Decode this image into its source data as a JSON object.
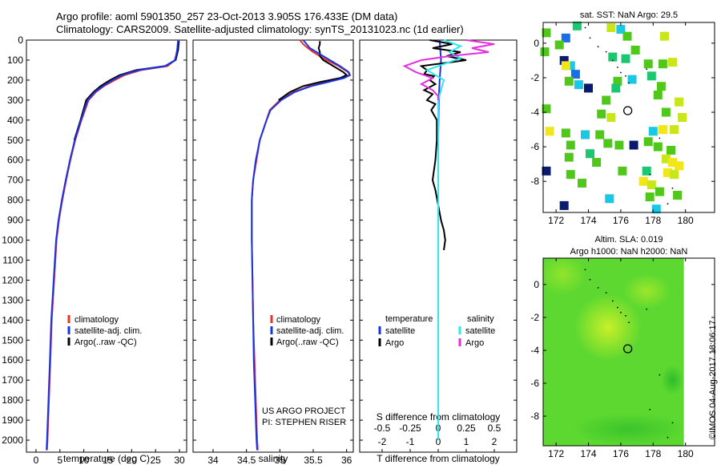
{
  "header": {
    "line1": "Argo profile: aoml 5901350_257 23-Oct-2013 3.905S 176.433E (DM data)",
    "line2": "Climatology: CARS2009. Satellite-adjusted climatology: synTS_20131023.nc (1d earlier)"
  },
  "colors": {
    "climatology": "#e8312a",
    "satellite": "#1a32e6",
    "argo": "#000000",
    "sat_salinity": "#2ee6f0",
    "argo_salinity": "#e62ee0"
  },
  "pressure_axis": {
    "ticks": [
      0,
      100,
      200,
      300,
      400,
      500,
      600,
      700,
      800,
      900,
      1000,
      1100,
      1200,
      1300,
      1400,
      1500,
      1600,
      1700,
      1800,
      1900,
      2000
    ],
    "range": [
      0,
      2060
    ]
  },
  "chart_data": [
    {
      "type": "line",
      "panel": "temperature",
      "xlabel": "temperature (deg C)",
      "xlim": [
        -2,
        31.5
      ],
      "xticks": [
        0,
        5,
        10,
        15,
        20,
        25,
        30
      ],
      "legend": [
        "climatology",
        "satellite-adj. clim.",
        "Argo(..raw -QC)"
      ],
      "series": [
        {
          "name": "climatology",
          "pressure": [
            0,
            50,
            100,
            130,
            150,
            175,
            200,
            230,
            260,
            300,
            400,
            500,
            600,
            700,
            800,
            900,
            1000,
            1200,
            1400,
            1600,
            1800,
            2000,
            2050
          ],
          "values": [
            29.8,
            29.6,
            29.0,
            27.5,
            22.0,
            18.5,
            16.5,
            14.2,
            12.5,
            11.0,
            9.5,
            8.2,
            7.2,
            6.3,
            5.5,
            4.8,
            4.3,
            3.8,
            3.3,
            3.0,
            2.7,
            2.4,
            2.3
          ]
        },
        {
          "name": "satellite-adj. clim.",
          "pressure": [
            0,
            50,
            100,
            130,
            150,
            175,
            200,
            230,
            260,
            300,
            400,
            500,
            600,
            700,
            800,
            900,
            1000,
            1200,
            1400,
            1600,
            1800,
            2000,
            2050
          ],
          "values": [
            29.7,
            29.5,
            29.1,
            27.0,
            21.5,
            18.0,
            16.0,
            14.0,
            12.3,
            10.8,
            9.4,
            8.1,
            7.1,
            6.2,
            5.4,
            4.7,
            4.2,
            3.7,
            3.2,
            2.9,
            2.6,
            2.3,
            2.2
          ]
        },
        {
          "name": "Argo(..raw -QC)",
          "pressure": [
            5,
            50,
            100,
            130,
            150,
            175,
            200,
            230,
            260,
            300,
            400,
            500
          ],
          "values": [
            29.9,
            29.7,
            29.2,
            27.0,
            21.0,
            17.5,
            15.5,
            13.5,
            12.0,
            10.5,
            9.3,
            8.0
          ]
        }
      ]
    },
    {
      "type": "line",
      "panel": "salinity",
      "xlabel": "salinity",
      "xlim": [
        33.7,
        36.1
      ],
      "xticks": [
        34,
        34.5,
        35,
        35.5,
        36
      ],
      "xticklabels": [
        "34",
        "34.5",
        "35",
        "35.5",
        "36"
      ],
      "legend": [
        "climatology",
        "satellite-adj. clim.",
        "Argo(..raw -QC)"
      ],
      "series": [
        {
          "name": "climatology",
          "pressure": [
            0,
            20,
            40,
            60,
            80,
            100,
            130,
            160,
            175,
            190,
            210,
            230,
            260,
            300,
            350,
            400,
            500,
            600,
            700,
            800,
            1000,
            1200,
            1400,
            1600,
            1800,
            2000,
            2050
          ],
          "values": [
            35.3,
            35.35,
            35.42,
            35.5,
            35.6,
            35.7,
            35.88,
            36.02,
            36.05,
            35.95,
            35.7,
            35.45,
            35.2,
            35.0,
            34.85,
            34.8,
            34.7,
            34.65,
            34.6,
            34.58,
            34.58,
            34.59,
            34.6,
            34.62,
            34.64,
            34.66,
            34.67
          ]
        },
        {
          "name": "satellite-adj. clim.",
          "pressure": [
            0,
            20,
            40,
            60,
            80,
            100,
            130,
            160,
            175,
            190,
            210,
            230,
            260,
            300,
            350,
            400,
            500,
            600,
            700,
            800,
            1000,
            1200,
            1400,
            1600,
            1800,
            2000,
            2050
          ],
          "values": [
            35.35,
            35.4,
            35.45,
            35.55,
            35.65,
            35.75,
            35.9,
            36.03,
            36.05,
            35.96,
            35.72,
            35.47,
            35.22,
            35.02,
            34.86,
            34.8,
            34.7,
            34.64,
            34.6,
            34.58,
            34.58,
            34.59,
            34.6,
            34.61,
            34.63,
            34.65,
            34.66
          ]
        },
        {
          "name": "Argo(..raw -QC)",
          "pressure": [
            5,
            20,
            40,
            60,
            80,
            100,
            130,
            160,
            175,
            190,
            210,
            230,
            260,
            300
          ],
          "values": [
            35.6,
            35.6,
            35.58,
            35.6,
            35.6,
            35.65,
            35.8,
            35.95,
            36.0,
            35.9,
            35.6,
            35.35,
            35.15,
            34.98
          ]
        }
      ],
      "annotation": [
        "US ARGO PROJECT",
        "PI: STEPHEN RISER"
      ]
    },
    {
      "type": "line",
      "panel": "difference",
      "xlabel_bottom": "T difference from climatology",
      "xlabel_top": "S difference from climatology",
      "xlim": [
        -2.8,
        2.8
      ],
      "xticks_T": [
        -2,
        -1,
        0,
        1,
        2
      ],
      "xticks_S": [
        -0.5,
        -0.25,
        0,
        0.25,
        0.5
      ],
      "xticklabels_S": [
        "-0.5",
        "-0.25",
        "0",
        "0.25",
        "0.5"
      ],
      "S_scale_factor": 4,
      "legend_temperature": [
        "satellite",
        "Argo"
      ],
      "legend_salinity": [
        "satellite",
        "Argo"
      ],
      "legend_titles": {
        "temperature": "temperature",
        "salinity": "salinity"
      },
      "series": [
        {
          "name": "T satellite",
          "color_key": "satellite",
          "pressure": [
            0,
            100,
            200,
            300,
            500,
            1000,
            1500,
            2000
          ],
          "values": [
            0.05,
            0.1,
            0.05,
            0.02,
            0.0,
            0.0,
            0.0,
            0.0
          ]
        },
        {
          "name": "T Argo",
          "color_key": "argo",
          "pressure": [
            0,
            20,
            40,
            60,
            80,
            100,
            110,
            130,
            150,
            170,
            180,
            200,
            220,
            250,
            270,
            300,
            320,
            350,
            400,
            500,
            600,
            700,
            750,
            900,
            950,
            1000,
            1050
          ],
          "values": [
            -0.3,
            0.5,
            -0.2,
            0.8,
            0.3,
            1.0,
            0.5,
            -0.6,
            -0.4,
            -0.5,
            -0.15,
            -0.3,
            -0.1,
            -0.5,
            -0.2,
            -0.4,
            -0.1,
            -0.25,
            -0.05,
            -0.05,
            -0.1,
            -0.2,
            -0.1,
            0.1,
            0.2,
            0.25,
            0.2
          ]
        },
        {
          "name": "S satellite",
          "color_key": "sat_salinity",
          "pressure": [
            0,
            30,
            60,
            90,
            120,
            150,
            200,
            300,
            500,
            1000,
            1500,
            2000
          ],
          "values": [
            0.05,
            0.2,
            0.1,
            0.2,
            0.05,
            -0.1,
            0.05,
            0.0,
            0.0,
            0.0,
            0.0,
            0.0
          ]
        },
        {
          "name": "S Argo",
          "color_key": "argo_salinity",
          "pressure": [
            0,
            20,
            40,
            60,
            80,
            100,
            130,
            160,
            190,
            220,
            250,
            280,
            300
          ],
          "values": [
            0.25,
            0.5,
            0.3,
            0.45,
            0.1,
            -0.15,
            -0.3,
            -0.2,
            -0.05,
            -0.15,
            -0.05,
            0.0,
            0.0
          ]
        }
      ]
    }
  ],
  "map_sst": {
    "title": "sat. SST: NaN Argo: 29.5",
    "xticks": [
      172,
      174,
      176,
      178,
      180
    ],
    "yticks": [
      0,
      -2,
      -4,
      -6,
      -8
    ],
    "xlim": [
      171.2,
      181.8
    ],
    "ylim": [
      -9.8,
      1.2
    ],
    "marker": {
      "lon": 176.433,
      "lat": -3.905
    },
    "color_scale": [
      "#0a1a6e",
      "#1a6ee6",
      "#1ac8e6",
      "#1ac870",
      "#50c81a",
      "#c8e61a",
      "#f0e61a"
    ],
    "cells": [
      {
        "lon": 171.4,
        "lat": 0.6,
        "c": 4
      },
      {
        "lon": 173.3,
        "lat": 1.0,
        "c": 3
      },
      {
        "lon": 175.4,
        "lat": 0.9,
        "c": 5
      },
      {
        "lon": 176.0,
        "lat": 0.8,
        "c": 2
      },
      {
        "lon": 176.4,
        "lat": 0.4,
        "c": 4
      },
      {
        "lon": 172.6,
        "lat": 0.3,
        "c": 1
      },
      {
        "lon": 172.2,
        "lat": -0.1,
        "c": 4
      },
      {
        "lon": 178.7,
        "lat": 0.4,
        "c": 5
      },
      {
        "lon": 171.3,
        "lat": -0.5,
        "c": 4
      },
      {
        "lon": 176.9,
        "lat": -0.4,
        "c": 4
      },
      {
        "lon": 172.5,
        "lat": -1.0,
        "c": 0
      },
      {
        "lon": 172.9,
        "lat": -1.3,
        "c": 2
      },
      {
        "lon": 172.6,
        "lat": -1.3,
        "c": 6
      },
      {
        "lon": 175.5,
        "lat": -0.8,
        "c": 3
      },
      {
        "lon": 176.3,
        "lat": -0.9,
        "c": 3
      },
      {
        "lon": 177.7,
        "lat": -1.2,
        "c": 4
      },
      {
        "lon": 178.6,
        "lat": -1.2,
        "c": 4
      },
      {
        "lon": 179.2,
        "lat": -1.1,
        "c": 5
      },
      {
        "lon": 173.2,
        "lat": -1.8,
        "c": 1
      },
      {
        "lon": 172.8,
        "lat": -2.2,
        "c": 4
      },
      {
        "lon": 173.4,
        "lat": -2.4,
        "c": 2
      },
      {
        "lon": 174.0,
        "lat": -2.6,
        "c": 0
      },
      {
        "lon": 175.8,
        "lat": -2.2,
        "c": 4
      },
      {
        "lon": 176.7,
        "lat": -2.1,
        "c": 2
      },
      {
        "lon": 175.7,
        "lat": -2.6,
        "c": 3
      },
      {
        "lon": 177.9,
        "lat": -1.9,
        "c": 3
      },
      {
        "lon": 178.5,
        "lat": -2.5,
        "c": 4
      },
      {
        "lon": 178.3,
        "lat": -3.0,
        "c": 4
      },
      {
        "lon": 179.6,
        "lat": -3.4,
        "c": 5
      },
      {
        "lon": 175.1,
        "lat": -3.3,
        "c": 4
      },
      {
        "lon": 171.4,
        "lat": -3.8,
        "c": 4
      },
      {
        "lon": 174.8,
        "lat": -4.1,
        "c": 4
      },
      {
        "lon": 175.4,
        "lat": -4.3,
        "c": 5
      },
      {
        "lon": 178.8,
        "lat": -4.0,
        "c": 4
      },
      {
        "lon": 179.8,
        "lat": -4.3,
        "c": 5
      },
      {
        "lon": 171.6,
        "lat": -5.1,
        "c": 6
      },
      {
        "lon": 172.6,
        "lat": -5.2,
        "c": 4
      },
      {
        "lon": 173.8,
        "lat": -5.3,
        "c": 2
      },
      {
        "lon": 174.7,
        "lat": -5.3,
        "c": 4
      },
      {
        "lon": 178.0,
        "lat": -5.1,
        "c": 2
      },
      {
        "lon": 178.6,
        "lat": -5.0,
        "c": 6
      },
      {
        "lon": 179.3,
        "lat": -5.0,
        "c": 5
      },
      {
        "lon": 175.2,
        "lat": -5.8,
        "c": 4
      },
      {
        "lon": 175.9,
        "lat": -5.9,
        "c": 4
      },
      {
        "lon": 176.8,
        "lat": -5.9,
        "c": 0
      },
      {
        "lon": 177.7,
        "lat": -5.7,
        "c": 4
      },
      {
        "lon": 178.3,
        "lat": -6.0,
        "c": 4
      },
      {
        "lon": 172.9,
        "lat": -5.9,
        "c": 4
      },
      {
        "lon": 179.1,
        "lat": -6.2,
        "c": 4
      },
      {
        "lon": 172.8,
        "lat": -6.6,
        "c": 4
      },
      {
        "lon": 174.1,
        "lat": -6.4,
        "c": 3
      },
      {
        "lon": 174.5,
        "lat": -6.9,
        "c": 4
      },
      {
        "lon": 178.8,
        "lat": -6.7,
        "c": 5
      },
      {
        "lon": 179.2,
        "lat": -6.9,
        "c": 6
      },
      {
        "lon": 179.6,
        "lat": -7.1,
        "c": 6
      },
      {
        "lon": 171.4,
        "lat": -7.4,
        "c": 0
      },
      {
        "lon": 172.9,
        "lat": -7.6,
        "c": 4
      },
      {
        "lon": 176.1,
        "lat": -7.4,
        "c": 4
      },
      {
        "lon": 177.6,
        "lat": -7.4,
        "c": 3
      },
      {
        "lon": 178.9,
        "lat": -7.5,
        "c": 6
      },
      {
        "lon": 179.3,
        "lat": -7.6,
        "c": 5
      },
      {
        "lon": 173.6,
        "lat": -8.1,
        "c": 4
      },
      {
        "lon": 177.4,
        "lat": -8.0,
        "c": 6
      },
      {
        "lon": 177.9,
        "lat": -8.2,
        "c": 5
      },
      {
        "lon": 178.4,
        "lat": -8.6,
        "c": 4
      },
      {
        "lon": 179.5,
        "lat": -8.8,
        "c": 4
      },
      {
        "lon": 177.8,
        "lat": -8.9,
        "c": 4
      },
      {
        "lon": 175.3,
        "lat": -9.0,
        "c": 2
      },
      {
        "lon": 172.5,
        "lat": -9.4,
        "c": 0
      },
      {
        "lon": 178.2,
        "lat": -9.6,
        "c": 2
      }
    ]
  },
  "map_sla": {
    "title1": "Altim. SLA: 0.019",
    "title2": "Argo h1000: NaN h2000: NaN",
    "xticks": [
      172,
      174,
      176,
      178,
      180
    ],
    "yticks": [
      0,
      -2,
      -4,
      -6,
      -8
    ],
    "xlim": [
      171.2,
      181.8
    ],
    "ylim": [
      -9.8,
      1.6
    ],
    "data_lon_max": 179.9,
    "marker": {
      "lon": 176.433,
      "lat": -3.905
    },
    "field_colors": {
      "base": "#5cd830",
      "bright": "#c8f028",
      "dark": "#28b828"
    }
  },
  "footer_stamp": "©IMOS 04-Aug-2017 18:06:17"
}
